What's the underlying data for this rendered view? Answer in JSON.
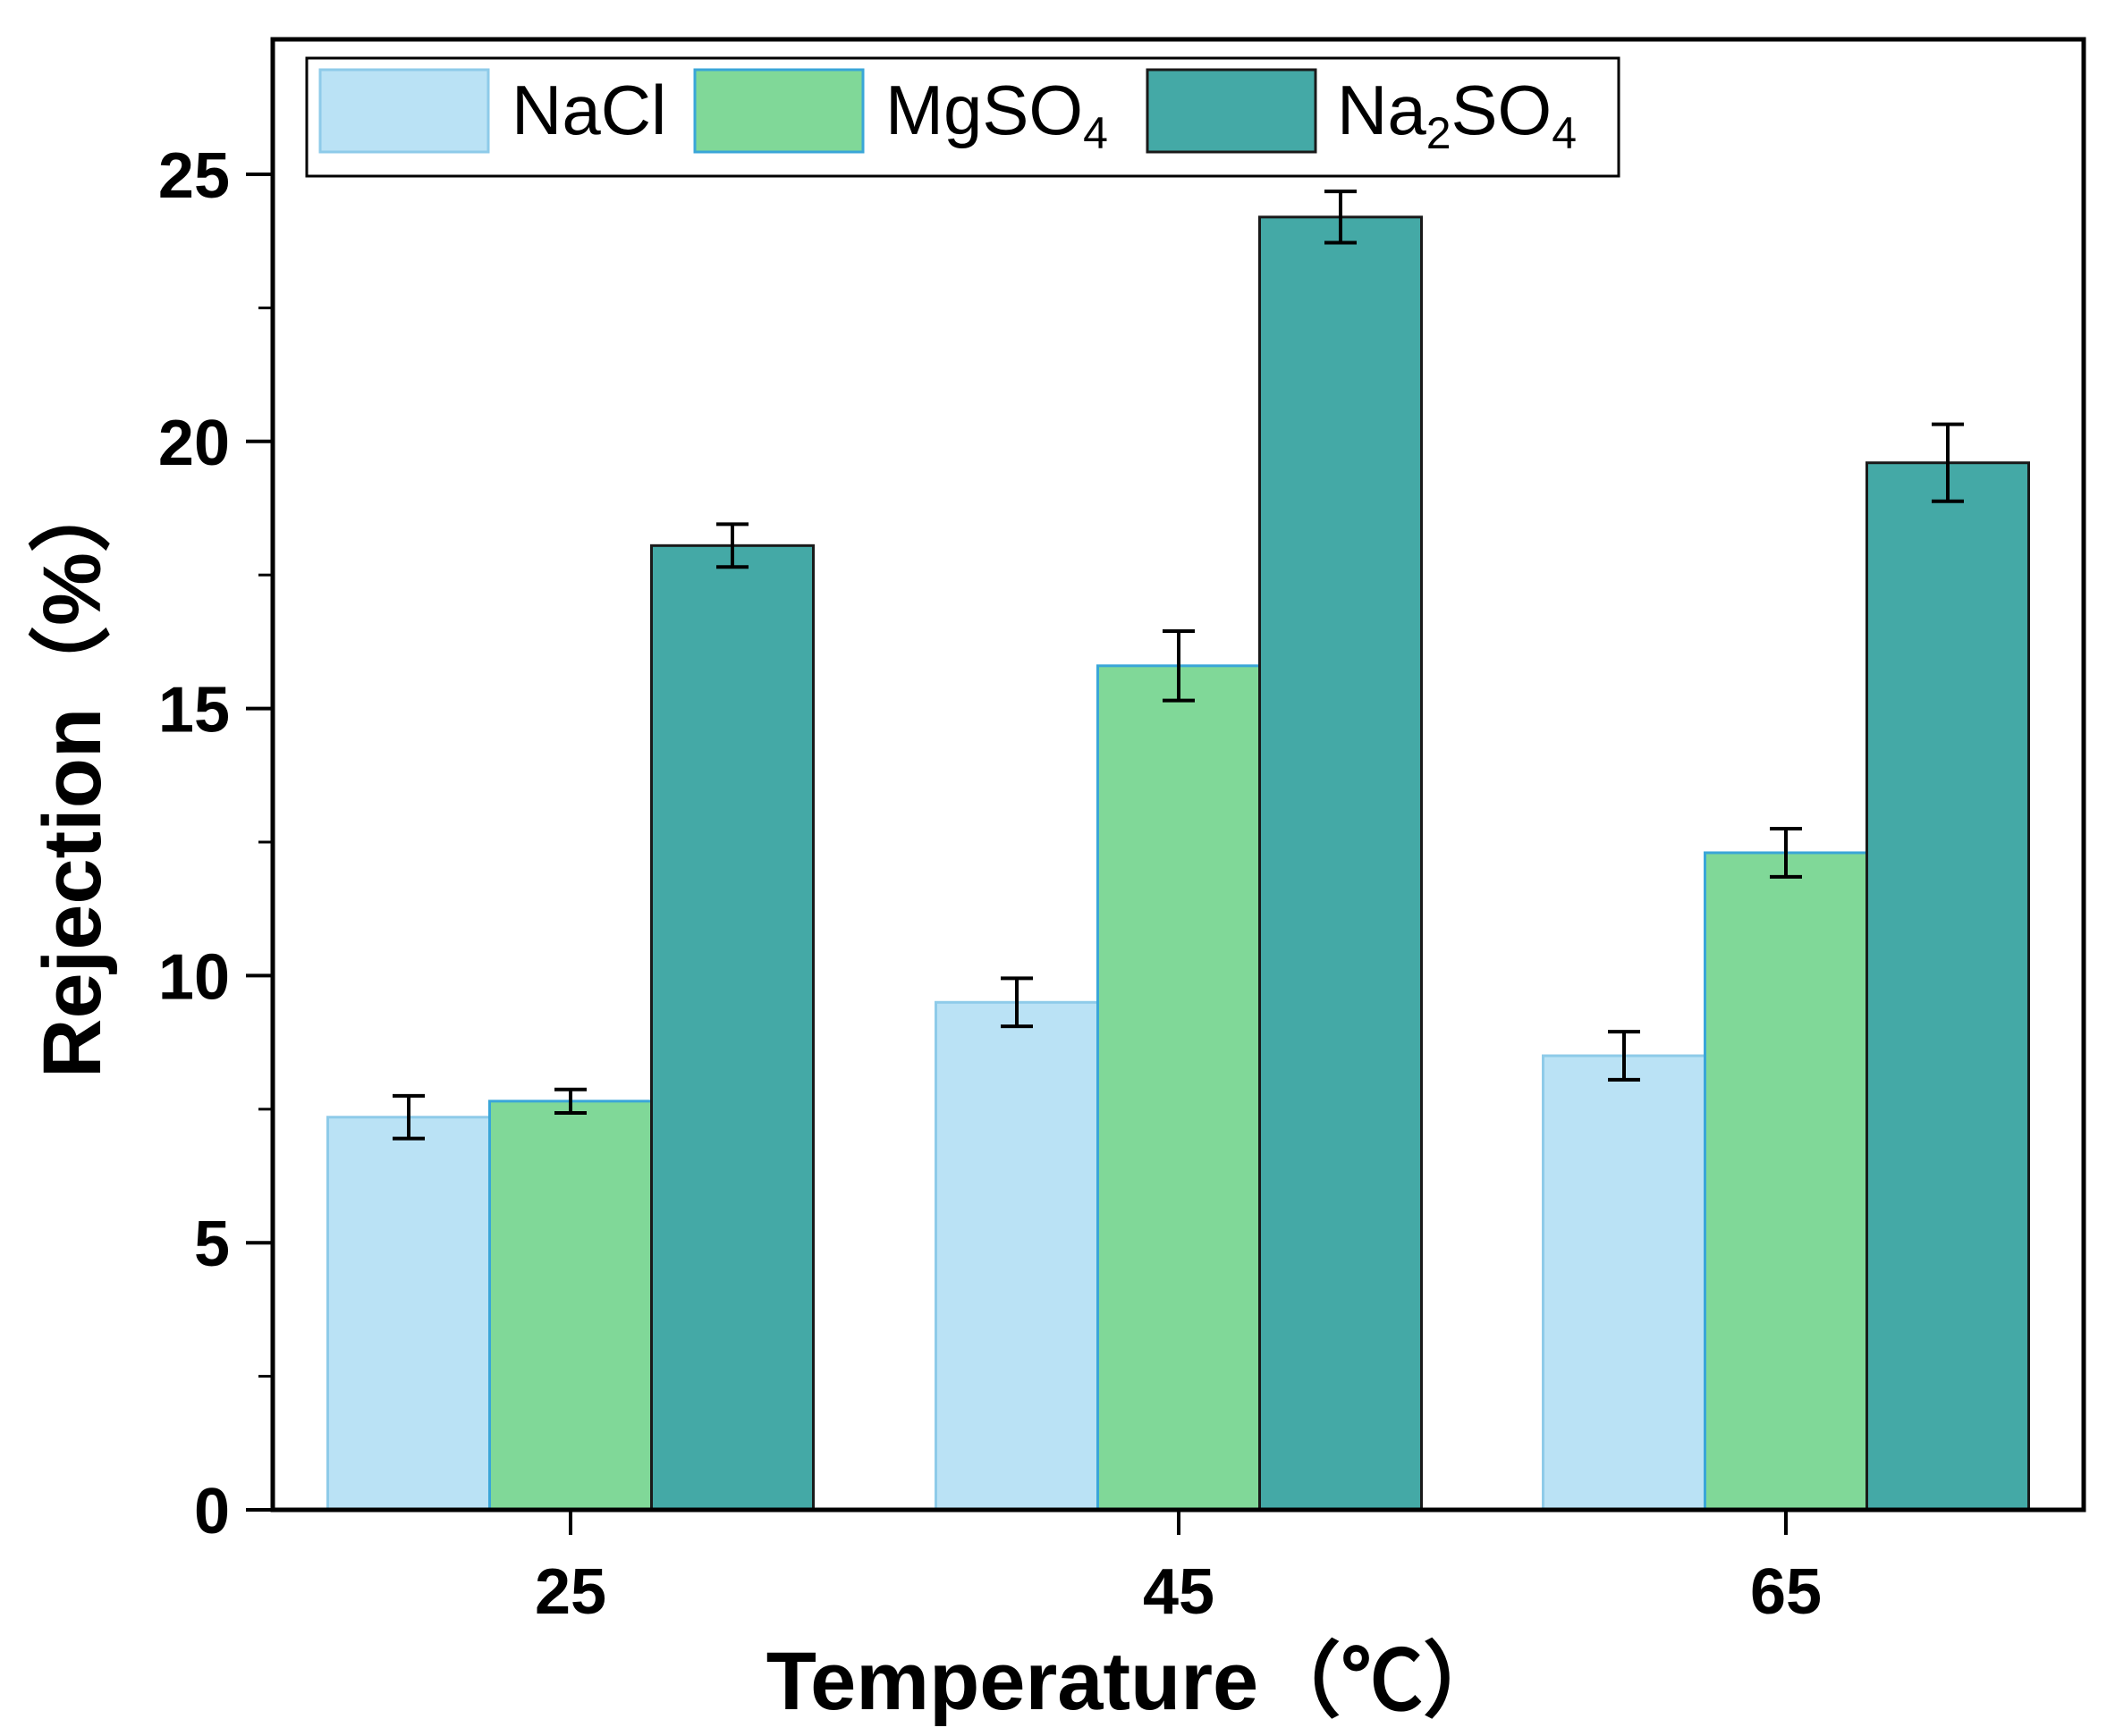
{
  "chart_data": {
    "type": "bar",
    "categories": [
      "25",
      "45",
      "65"
    ],
    "xlabel": "Temperature（℃）",
    "ylabel": "Rejection（%）",
    "ylim": [
      0,
      27.5
    ],
    "yticks": [
      "0",
      "5",
      "10",
      "15",
      "20",
      "25"
    ],
    "legend_position": "top-left",
    "series": [
      {
        "name": "NaCl",
        "label_main": "NaCl",
        "label_sub": "",
        "label_tail": "",
        "color": "#bae2f5",
        "edge": "#8ecbe9",
        "values": [
          7.35,
          9.5,
          8.5
        ],
        "errors": [
          0.4,
          0.45,
          0.45
        ]
      },
      {
        "name": "MgSO4",
        "label_main": "MgSO",
        "label_sub": "4",
        "label_tail": "",
        "color": "#80d898",
        "edge": "#3aa6d8",
        "values": [
          7.65,
          15.8,
          12.3
        ],
        "errors": [
          0.22,
          0.65,
          0.45
        ]
      },
      {
        "name": "Na2SO4",
        "label_main": "Na",
        "label_sub": "2",
        "label_tail": "SO",
        "label_sub2": "4",
        "color": "#44a9a6",
        "edge": "#1a1a1a",
        "values": [
          18.05,
          24.2,
          19.6
        ],
        "errors": [
          0.4,
          0.48,
          0.72
        ]
      }
    ]
  }
}
